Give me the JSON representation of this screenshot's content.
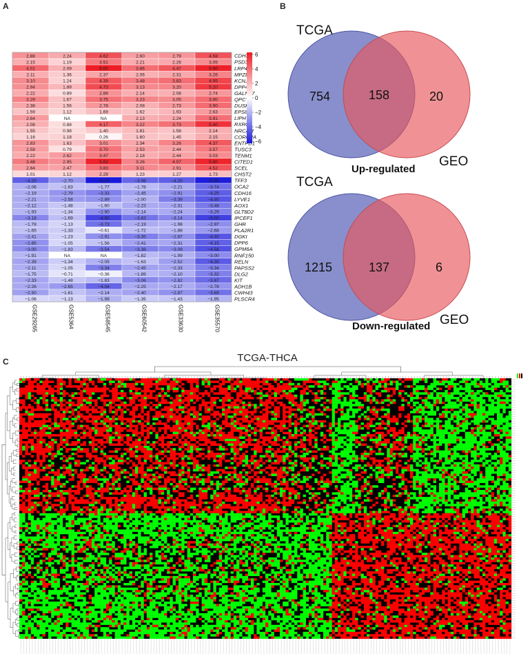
{
  "figure": {
    "panel_a_label": "A",
    "panel_b_label": "B",
    "panel_c_label": "C"
  },
  "panel_a": {
    "datasets": [
      "GSE29265",
      "GSE5364",
      "GSE58545",
      "GSE60542",
      "GSE33630",
      "GSE35570"
    ],
    "colorbar_ticks": [
      "6",
      "4",
      "2",
      "0",
      "−2",
      "−4",
      "−6"
    ],
    "colors": {
      "positive": "#ee1c25",
      "negative": "#1a1adc",
      "neutral": "#ffffff",
      "na": "#ffffff"
    },
    "genes": [
      "CDH3",
      "PSD3",
      "LRP4",
      "MPZL2",
      "KCNJ2",
      "DPP4",
      "GALNT7",
      "QPCT",
      "DUSP4",
      "EPS8",
      "LIPH",
      "RXRG",
      "NRCAM",
      "CORO2A",
      "ENTPD1",
      "TUSC3",
      "TENM1",
      "CITED1",
      "SCEL",
      "CHST2",
      "TFF3",
      "OCA2",
      "CDH16",
      "LYVE1",
      "AOX1",
      "GLT8D2",
      "IPCEF1",
      "GHR",
      "PLA2R1",
      "DGKI",
      "DPP6",
      "GPM6A",
      "RNF150",
      "RELN",
      "PAPSS2",
      "DLG2",
      "KIT",
      "ADH1B",
      "CWH43",
      "PLSCR4"
    ],
    "cells": [
      [
        "2.88",
        "2.24",
        "4.62",
        "2.60",
        "2.79",
        "4.58"
      ],
      [
        "2.15",
        "1.19",
        "3.51",
        "2.21",
        "2.26",
        "3.05"
      ],
      [
        "4.01",
        "2.09",
        "6.00",
        "3.86",
        "4.47",
        "5.90"
      ],
      [
        "2.11",
        "1.36",
        "2.37",
        "2.06",
        "2.31",
        "3.26"
      ],
      [
        "3.10",
        "1.24",
        "4.39",
        "3.48",
        "3.83",
        "4.95"
      ],
      [
        "2.94",
        "1.89",
        "4.73",
        "3.13",
        "3.20",
        "5.20"
      ],
      [
        "2.22",
        "0.89",
        "2.89",
        "2.14",
        "2.08",
        "2.74"
      ],
      [
        "3.29",
        "1.67",
        "3.75",
        "3.23",
        "3.05",
        "3.90"
      ],
      [
        "2.38",
        "1.56",
        "2.78",
        "2.08",
        "2.73",
        "3.90"
      ],
      [
        "1.59",
        "1.12",
        "1.69",
        "1.62",
        "1.93",
        "2.63"
      ],
      [
        "2.64",
        "NA",
        "NA",
        "2.13",
        "2.24",
        "3.81"
      ],
      [
        "2.08",
        "0.88",
        "4.17",
        "3.22",
        "3.73",
        "5.40"
      ],
      [
        "1.55",
        "0.98",
        "1.40",
        "1.81",
        "1.58",
        "2.14"
      ],
      [
        "1.16",
        "1.18",
        "0.26",
        "1.60",
        "1.45",
        "2.15"
      ],
      [
        "2.83",
        "1.63",
        "3.01",
        "2.34",
        "3.26",
        "4.37"
      ],
      [
        "2.58",
        "0.79",
        "3.70",
        "2.53",
        "2.44",
        "3.57"
      ],
      [
        "2.22",
        "2.62",
        "3.47",
        "2.18",
        "2.44",
        "3.03"
      ],
      [
        "3.48",
        "2.95",
        "5.82",
        "3.26",
        "4.07",
        "5.80"
      ],
      [
        "2.64",
        "2.47",
        "3.83",
        "3.11",
        "2.91",
        "4.52"
      ],
      [
        "1.01",
        "1.12",
        "2.28",
        "1.23",
        "1.27",
        "1.73"
      ],
      [
        "−4.20",
        "−2.70",
        "−6.20",
        "−3.98",
        "−4.20",
        "−5.90"
      ],
      [
        "−2.06",
        "−1.63",
        "−1.77",
        "−1.78",
        "−2.21",
        "−3.74"
      ],
      [
        "−2.19",
        "−2.79",
        "−3.33",
        "−2.45",
        "−2.91",
        "−4.25"
      ],
      [
        "−2.21",
        "−2.58",
        "−2.89",
        "−2.00",
        "−3.39",
        "−4.40"
      ],
      [
        "−2.12",
        "−1.48",
        "−1.60",
        "−2.23",
        "−2.31",
        "−3.48"
      ],
      [
        "−1.93",
        "−1.34",
        "−2.90",
        "−2.14",
        "−2.24",
        "−3.29"
      ],
      [
        "−3.18",
        "−1.69",
        "−4.90",
        "−3.63",
        "−3.14",
        "−5.00"
      ],
      [
        "−1.78",
        "−1.13",
        "−3.73",
        "−2.19",
        "−1.98",
        "−2.97"
      ],
      [
        "−1.65",
        "−1.33",
        "−0.61",
        "−1.72",
        "−1.88",
        "−2.68"
      ],
      [
        "−2.41",
        "−1.23",
        "−2.91",
        "−3.35",
        "−2.87",
        "−4.40"
      ],
      [
        "−2.85",
        "−1.05",
        "−1.56",
        "−2.41",
        "−2.31",
        "−4.15"
      ],
      [
        "−3.00",
        "−1.83",
        "−3.54",
        "−3.38",
        "−3.09",
        "−4.56"
      ],
      [
        "−1.91",
        "NA",
        "NA",
        "−1.82",
        "−1.99",
        "−3.00"
      ],
      [
        "−2.39",
        "−1.34",
        "−2.05",
        "−1.63",
        "−2.52",
        "−4.30"
      ],
      [
        "−2.11",
        "−1.05",
        "−3.34",
        "−2.45",
        "−2.33",
        "−3.34"
      ],
      [
        "−1.75",
        "−0.71",
        "−0.36",
        "−1.89",
        "−2.10",
        "−3.32"
      ],
      [
        "−2.33",
        "−1.48",
        "−1.83",
        "−3.06",
        "−2.82",
        "−3.87"
      ],
      [
        "−2.26",
        "−2.65",
        "−4.04",
        "−2.25",
        "−2.17",
        "−2.78"
      ],
      [
        "−2.50",
        "−1.61",
        "−2.14",
        "−2.40",
        "−2.87",
        "−3.69"
      ],
      [
        "−1.06",
        "−1.13",
        "−1.99",
        "−1.35",
        "−1.43",
        "−1.95"
      ]
    ]
  },
  "panel_b": {
    "up": {
      "left_label": "TCGA",
      "right_label": "GEO",
      "left_only": "754",
      "overlap": "158",
      "right_only": "20",
      "caption": "Up-regulated"
    },
    "down": {
      "left_label": "TCGA",
      "right_label": "GEO",
      "left_only": "1215",
      "overlap": "137",
      "right_only": "6",
      "caption": "Down-regulated"
    },
    "colors": {
      "left_circle": "#5a64b8",
      "right_circle": "#e8575c"
    }
  },
  "panel_c": {
    "title": "TCGA-THCA",
    "colors": {
      "high": "#ff0000",
      "low": "#00ff00",
      "mid": "#000000"
    }
  }
}
